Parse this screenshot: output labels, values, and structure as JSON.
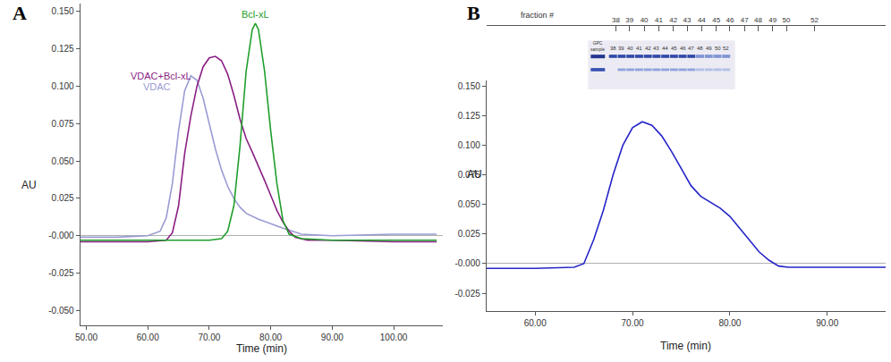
{
  "chart_data": [
    {
      "panel": "A",
      "type": "line",
      "x_label": "Time (min)",
      "y_label": "AU",
      "grid": false,
      "xlim": [
        49,
        108
      ],
      "xticks": [
        {
          "value": 50,
          "label": "50.00"
        },
        {
          "value": 60,
          "label": "60.00"
        },
        {
          "value": 70,
          "label": "70.00"
        },
        {
          "value": 80,
          "label": "80.00"
        },
        {
          "value": 90,
          "label": "90.00"
        },
        {
          "value": 100,
          "label": "100.00"
        }
      ],
      "ylim": [
        -0.06,
        0.155
      ],
      "yticks": [
        {
          "value": -0.05,
          "label": "-0.050"
        },
        -0.025,
        {
          "value": 0,
          "label": "-0.000"
        },
        0.025,
        {
          "value": 0.05,
          "label": "0.050"
        },
        0.075,
        {
          "value": 0.1,
          "label": "0.100"
        },
        0.125,
        {
          "value": 0.15,
          "label": "0.150"
        }
      ],
      "series": [
        {
          "name": "VDAC",
          "color": "#9b9bd4",
          "x": [
            49,
            55,
            60,
            62,
            63,
            64,
            65,
            66,
            67,
            68,
            69,
            70,
            71,
            72,
            73,
            74,
            75,
            76,
            78,
            80,
            82,
            85,
            90,
            100,
            107
          ],
          "values": [
            -0.001,
            -0.001,
            0,
            0.003,
            0.012,
            0.035,
            0.07,
            0.097,
            0.107,
            0.104,
            0.092,
            0.075,
            0.058,
            0.044,
            0.033,
            0.025,
            0.019,
            0.015,
            0.011,
            0.008,
            0.005,
            0.001,
            0,
            0.001,
            0.001
          ]
        },
        {
          "name": "VDAC+Bcl-xL",
          "color": "#8a1f83",
          "x": [
            49,
            55,
            60,
            63,
            64,
            65,
            66,
            67,
            68,
            69,
            70,
            71,
            72,
            73,
            74,
            75,
            76,
            77,
            78,
            79,
            80,
            81,
            82,
            83,
            84,
            86,
            90,
            100,
            107
          ],
          "values": [
            -0.004,
            -0.004,
            -0.004,
            -0.003,
            0.002,
            0.02,
            0.055,
            0.08,
            0.1,
            0.113,
            0.119,
            0.12,
            0.117,
            0.108,
            0.094,
            0.078,
            0.065,
            0.056,
            0.047,
            0.037,
            0.027,
            0.017,
            0.009,
            0.003,
            -0.001,
            -0.003,
            -0.003,
            -0.004,
            -0.004
          ]
        },
        {
          "name": "Bcl-xL",
          "color": "#1f9e2a",
          "x": [
            49,
            60,
            70,
            72,
            73,
            74,
            75,
            76,
            77,
            77.5,
            78,
            79,
            80,
            81,
            82,
            83,
            85,
            90,
            100,
            107
          ],
          "values": [
            -0.003,
            -0.003,
            -0.003,
            -0.002,
            0.003,
            0.02,
            0.06,
            0.11,
            0.138,
            0.142,
            0.138,
            0.11,
            0.07,
            0.035,
            0.01,
            0.001,
            -0.002,
            -0.003,
            -0.003,
            -0.003
          ]
        }
      ]
    },
    {
      "panel": "B",
      "type": "line",
      "x_label": "Time (min)",
      "y_label": "AU",
      "grid": false,
      "xlim": [
        55,
        96
      ],
      "xticks": [
        {
          "value": 60,
          "label": "60.00"
        },
        {
          "value": 70,
          "label": "70.00"
        },
        {
          "value": 80,
          "label": "80.00"
        },
        {
          "value": 90,
          "label": "90.00"
        }
      ],
      "ylim": [
        -0.04,
        0.155
      ],
      "yticks": [
        -0.025,
        {
          "value": 0,
          "label": "-0.000"
        },
        0.025,
        {
          "value": 0.05,
          "label": "0.050"
        },
        0.075,
        {
          "value": 0.1,
          "label": "0.100"
        },
        0.125,
        {
          "value": 0.15,
          "label": "0.150"
        }
      ],
      "fraction_label": "fraction #",
      "fraction_ticks": [
        {
          "value": 68.3,
          "label": "38"
        },
        {
          "value": 69.7,
          "label": "39"
        },
        {
          "value": 71.2,
          "label": "40"
        },
        {
          "value": 72.7,
          "label": "41"
        },
        {
          "value": 74.2,
          "label": "42"
        },
        {
          "value": 75.6,
          "label": "43"
        },
        {
          "value": 77.1,
          "label": "44"
        },
        {
          "value": 78.6,
          "label": "45"
        },
        {
          "value": 80.0,
          "label": "46"
        },
        {
          "value": 81.5,
          "label": "47"
        },
        {
          "value": 82.9,
          "label": "48"
        },
        {
          "value": 84.4,
          "label": "49"
        },
        {
          "value": 85.8,
          "label": "50"
        },
        {
          "value": 88.7,
          "label": "52"
        }
      ],
      "gel": {
        "label": "GPC sample",
        "lanes": [
          "38",
          "39",
          "40",
          "41",
          "42",
          "43",
          "44",
          "45",
          "46",
          "47",
          "48",
          "49",
          "50",
          "52"
        ]
      },
      "series": [
        {
          "color": "#2525c8",
          "x": [
            55,
            60,
            64,
            65,
            66,
            67,
            68,
            69,
            70,
            71,
            72,
            73,
            74,
            75,
            76,
            77,
            78,
            79,
            80,
            81,
            82,
            83,
            84,
            85,
            86,
            90,
            96
          ],
          "values": [
            -0.004,
            -0.004,
            -0.003,
            0.0,
            0.02,
            0.045,
            0.075,
            0.1,
            0.115,
            0.12,
            0.117,
            0.108,
            0.095,
            0.08,
            0.066,
            0.057,
            0.052,
            0.047,
            0.04,
            0.03,
            0.02,
            0.01,
            0.003,
            -0.002,
            -0.003,
            -0.003,
            -0.003
          ]
        }
      ]
    }
  ]
}
